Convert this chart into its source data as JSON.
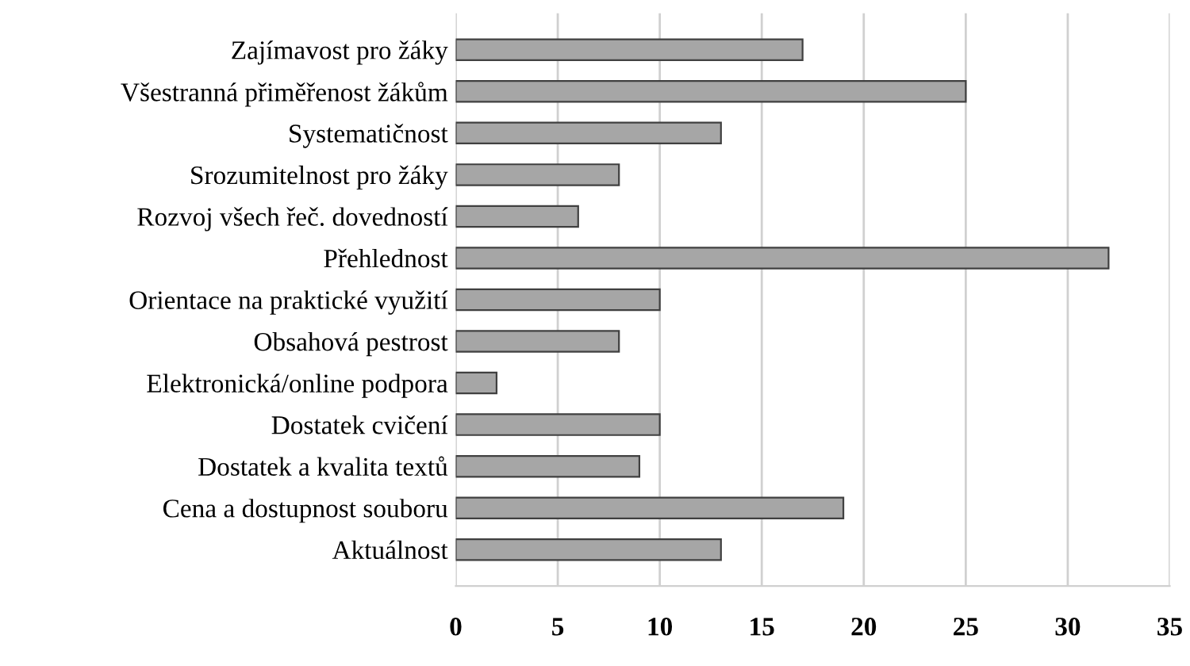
{
  "chart_data": {
    "type": "bar",
    "orientation": "horizontal",
    "categories": [
      "Zajímavost pro žáky",
      "Všestranná přiměřenost žákům",
      "Systematičnost",
      "Srozumitelnost pro žáky",
      "Rozvoj všech řeč. dovedností",
      "Přehlednost",
      "Orientace na praktické využití",
      "Obsahová pestrost",
      "Elektronická/online podpora",
      "Dostatek cvičení",
      "Dostatek a kvalita textů",
      "Cena a dostupnost souboru",
      "Aktuálnost"
    ],
    "values": [
      17,
      25,
      13,
      8,
      6,
      32,
      10,
      8,
      2,
      10,
      9,
      19,
      13
    ],
    "color": "#a6a6a6",
    "xlim": [
      0,
      35
    ],
    "xticks": [
      0,
      5,
      10,
      15,
      20,
      25,
      30,
      35
    ],
    "grid": "x"
  }
}
